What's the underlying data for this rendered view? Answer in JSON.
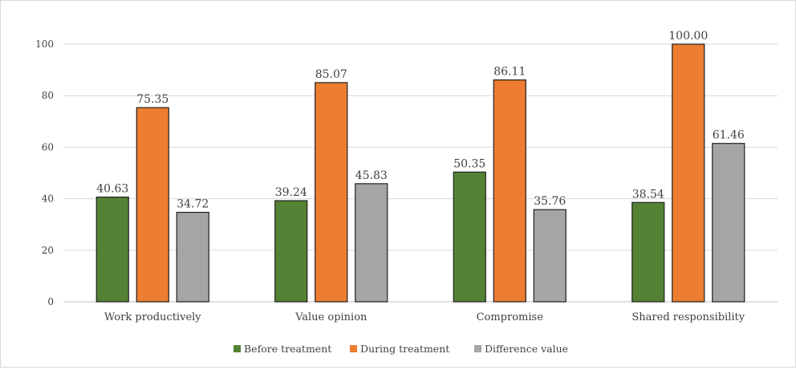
{
  "chart_data": {
    "type": "bar",
    "title": "",
    "xlabel": "",
    "ylabel": "",
    "ylim": [
      0,
      100
    ],
    "yticks": [
      0,
      20,
      40,
      60,
      80,
      100
    ],
    "grid": true,
    "legend_position": "bottom",
    "categories": [
      "Work productively",
      "Value opinion",
      "Compromise",
      "Shared responsibility"
    ],
    "series": [
      {
        "name": "Before treatment",
        "color": "#548235",
        "values": [
          40.63,
          39.24,
          50.35,
          38.54
        ],
        "labels": [
          "40.63",
          "39.24",
          "50.35",
          "38.54"
        ]
      },
      {
        "name": "During treatment",
        "color": "#ed7d31",
        "values": [
          75.35,
          85.07,
          86.11,
          100.0
        ],
        "labels": [
          "75.35",
          "85.07",
          "86.11",
          "100.00"
        ]
      },
      {
        "name": "Difference value",
        "color": "#a5a5a5",
        "values": [
          34.72,
          45.83,
          35.76,
          61.46
        ],
        "labels": [
          "34.72",
          "45.83",
          "35.76",
          "61.46"
        ]
      }
    ]
  }
}
